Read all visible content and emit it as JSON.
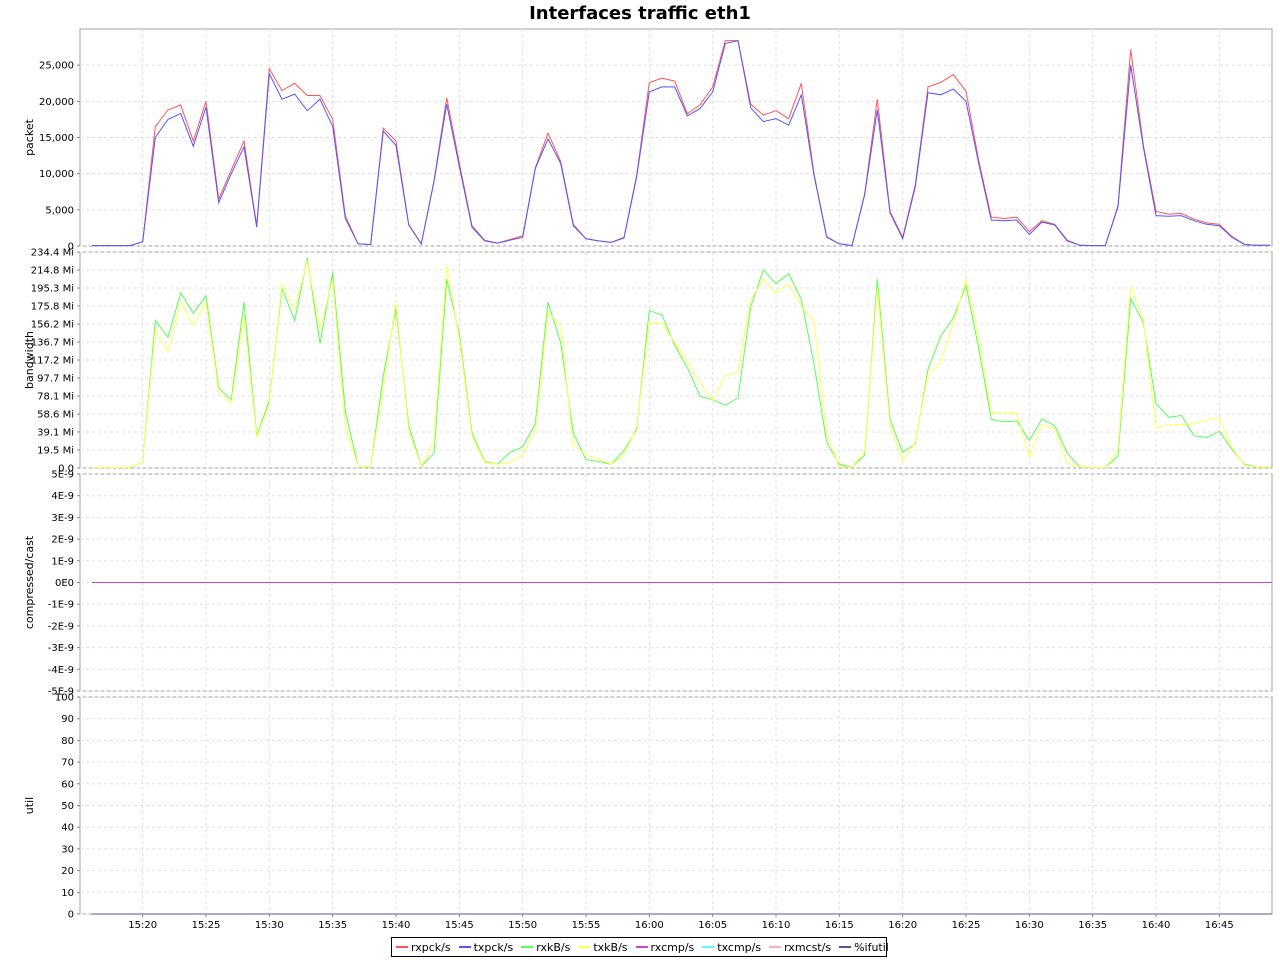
{
  "chart_data": {
    "type": "line",
    "title": "Interfaces traffic eth1",
    "x_ticks": [
      "15:20",
      "15:25",
      "15:30",
      "15:35",
      "15:40",
      "15:45",
      "15:50",
      "15:55",
      "16:00",
      "16:05",
      "16:10",
      "16:15",
      "16:20",
      "16:25",
      "16:30",
      "16:35",
      "16:40",
      "16:45"
    ],
    "x_start": "15:16",
    "x_end": "16:49",
    "x_step_minutes": 1,
    "legend_position": "bottom",
    "grid": true,
    "series_styles": [
      {
        "name": "rxpck/s",
        "color": "#ff5555"
      },
      {
        "name": "txpck/s",
        "color": "#5555ff"
      },
      {
        "name": "rxkB/s",
        "color": "#55ff55"
      },
      {
        "name": "txkB/s",
        "color": "#ffff55"
      },
      {
        "name": "rxcmp/s",
        "color": "#cc44cc"
      },
      {
        "name": "txcmp/s",
        "color": "#55ffff"
      },
      {
        "name": "rxmcst/s",
        "color": "#ffafaf"
      },
      {
        "name": "%ifutil",
        "color": "#555599"
      }
    ],
    "panels": [
      {
        "ylabel": "packet",
        "ylim": [
          0,
          30000
        ],
        "yticks": [
          0,
          5000,
          10000,
          15000,
          20000,
          25000
        ],
        "ytick_labels": [
          "0",
          "5,000",
          "10,000",
          "15,000",
          "20,000",
          "25,000"
        ],
        "series": [
          {
            "name": "rxpck/s",
            "values": [
              50,
              50,
              50,
              50,
              600,
              16500,
              18800,
              19500,
              14500,
              20000,
              6500,
              10500,
              14500,
              2800,
              24500,
              21500,
              22500,
              20800,
              20800,
              17500,
              4200,
              300,
              200,
              16300,
              14500,
              3000,
              300,
              9000,
              20500,
              11500,
              2800,
              800,
              400,
              900,
              1400,
              10800,
              15600,
              11700,
              3000,
              1000,
              700,
              500,
              1200,
              9800,
              22600,
              23200,
              22800,
              18300,
              19500,
              22000,
              28400,
              28400,
              19600,
              18100,
              18700,
              17600,
              22500,
              10000,
              1300,
              300,
              50,
              7200,
              20300,
              4800,
              1200,
              8500,
              22000,
              22600,
              23700,
              21400,
              11800,
              4000,
              3800,
              4000,
              2000,
              3500,
              3000,
              800,
              100,
              50,
              50,
              5600,
              27200,
              14000,
              4800,
              4400,
              4500,
              3700,
              3200,
              3000,
              1300,
              200,
              100,
              100
            ]
          },
          {
            "name": "txpck/s",
            "values": [
              50,
              50,
              50,
              50,
              600,
              15000,
              17500,
              18300,
              13800,
              19200,
              6000,
              10000,
              13700,
              2600,
              23800,
              20300,
              21000,
              18700,
              20300,
              16500,
              3800,
              300,
              200,
              15900,
              13900,
              2900,
              300,
              8900,
              19600,
              11000,
              2600,
              700,
              400,
              800,
              1200,
              10700,
              14800,
              11400,
              2800,
              1000,
              700,
              500,
              1100,
              9600,
              21300,
              22000,
              22000,
              18000,
              19000,
              21300,
              28000,
              28400,
              19100,
              17200,
              17600,
              16700,
              20900,
              9800,
              1200,
              300,
              50,
              7100,
              18800,
              4600,
              1000,
              8200,
              21200,
              20900,
              21700,
              20000,
              11400,
              3600,
              3500,
              3600,
              1600,
              3300,
              2900,
              700,
              100,
              50,
              50,
              5400,
              25000,
              13700,
              4200,
              4100,
              4200,
              3500,
              3000,
              2800,
              1200,
              200,
              100,
              100
            ]
          }
        ]
      },
      {
        "ylabel": "bandwidth",
        "ylim": [
          0,
          234.4
        ],
        "yticks": [
          0,
          19.5,
          39.1,
          58.6,
          78.1,
          97.7,
          117.2,
          136.7,
          156.2,
          175.8,
          195.3,
          214.8,
          234.4
        ],
        "ytick_labels": [
          "0.0",
          "19.5 Mi",
          "39.1 Mi",
          "58.6 Mi",
          "78.1 Mi",
          "97.7 Mi",
          "117.2 Mi",
          "136.7 Mi",
          "156.2 Mi",
          "175.8 Mi",
          "195.3 Mi",
          "214.8 Mi",
          "234.4 Mi"
        ],
        "series": [
          {
            "name": "rxkB/s",
            "values": [
              0.5,
              0.5,
              0.5,
              0.5,
              6,
              160,
              142,
              190,
              168,
              187,
              87,
              74,
              180,
              35,
              73,
              195,
              160,
              228,
              135,
              212,
              62,
              2,
              1,
              100,
              173,
              46,
              2,
              16,
              205,
              146,
              38,
              7,
              4,
              17,
              23,
              48,
              180,
              136,
              38,
              9,
              7,
              4,
              19,
              42,
              171,
              166,
              133,
              109,
              78,
              74,
              68,
              76,
              175,
              215,
              200,
              211,
              183,
              113,
              28,
              4,
              1,
              14,
              205,
              53,
              17,
              26,
              107,
              143,
              163,
              198,
              130,
              53,
              50,
              51,
              30,
              53,
              46,
              16,
              1,
              0.5,
              0.5,
              13,
              184,
              158,
              70,
              55,
              57,
              35,
              33,
              40,
              20,
              4,
              1,
              1
            ]
          },
          {
            "name": "txkB/s",
            "values": [
              0.5,
              0.5,
              0.5,
              0.5,
              6,
              150,
              126,
              180,
              155,
              180,
              83,
              70,
              165,
              33,
              70,
              200,
              172,
              225,
              150,
              205,
              45,
              2,
              1,
              88,
              180,
              40,
              2,
              28,
              220,
              140,
              35,
              6,
              4,
              6,
              14,
              40,
              170,
              153,
              25,
              14,
              10,
              4,
              13,
              45,
              157,
              157,
              136,
              115,
              93,
              73,
              100,
              105,
              183,
              205,
              190,
              200,
              175,
              160,
              37,
              1,
              1,
              18,
              195,
              47,
              7,
              28,
              102,
              114,
              156,
              205,
              140,
              60,
              60,
              60,
              12,
              47,
              43,
              5,
              1,
              0.5,
              0.5,
              20,
              197,
              162,
              43,
              47,
              47,
              48,
              52,
              54,
              22,
              3,
              1,
              1
            ]
          }
        ]
      },
      {
        "ylabel": "compressed/cast",
        "ylim": [
          -5e-09,
          5e-09
        ],
        "yticks": [
          -5e-09,
          -4e-09,
          -3e-09,
          -2e-09,
          -1e-09,
          0,
          1e-09,
          2e-09,
          3e-09,
          4e-09,
          5e-09
        ],
        "ytick_labels": [
          "-5E-9",
          "-4E-9",
          "-3E-9",
          "-2E-9",
          "-1E-9",
          "0E0",
          "1E-9",
          "2E-9",
          "3E-9",
          "4E-9",
          "5E-9"
        ],
        "series": [
          {
            "name": "rxcmp/s",
            "constant": 0
          }
        ]
      },
      {
        "ylabel": "util",
        "ylim": [
          0,
          100
        ],
        "yticks": [
          0,
          10,
          20,
          30,
          40,
          50,
          60,
          70,
          80,
          90,
          100
        ],
        "ytick_labels": [
          "0",
          "10",
          "20",
          "30",
          "40",
          "50",
          "60",
          "70",
          "80",
          "90",
          "100"
        ],
        "series": [
          {
            "name": "%ifutil",
            "constant": 0
          }
        ]
      }
    ]
  }
}
